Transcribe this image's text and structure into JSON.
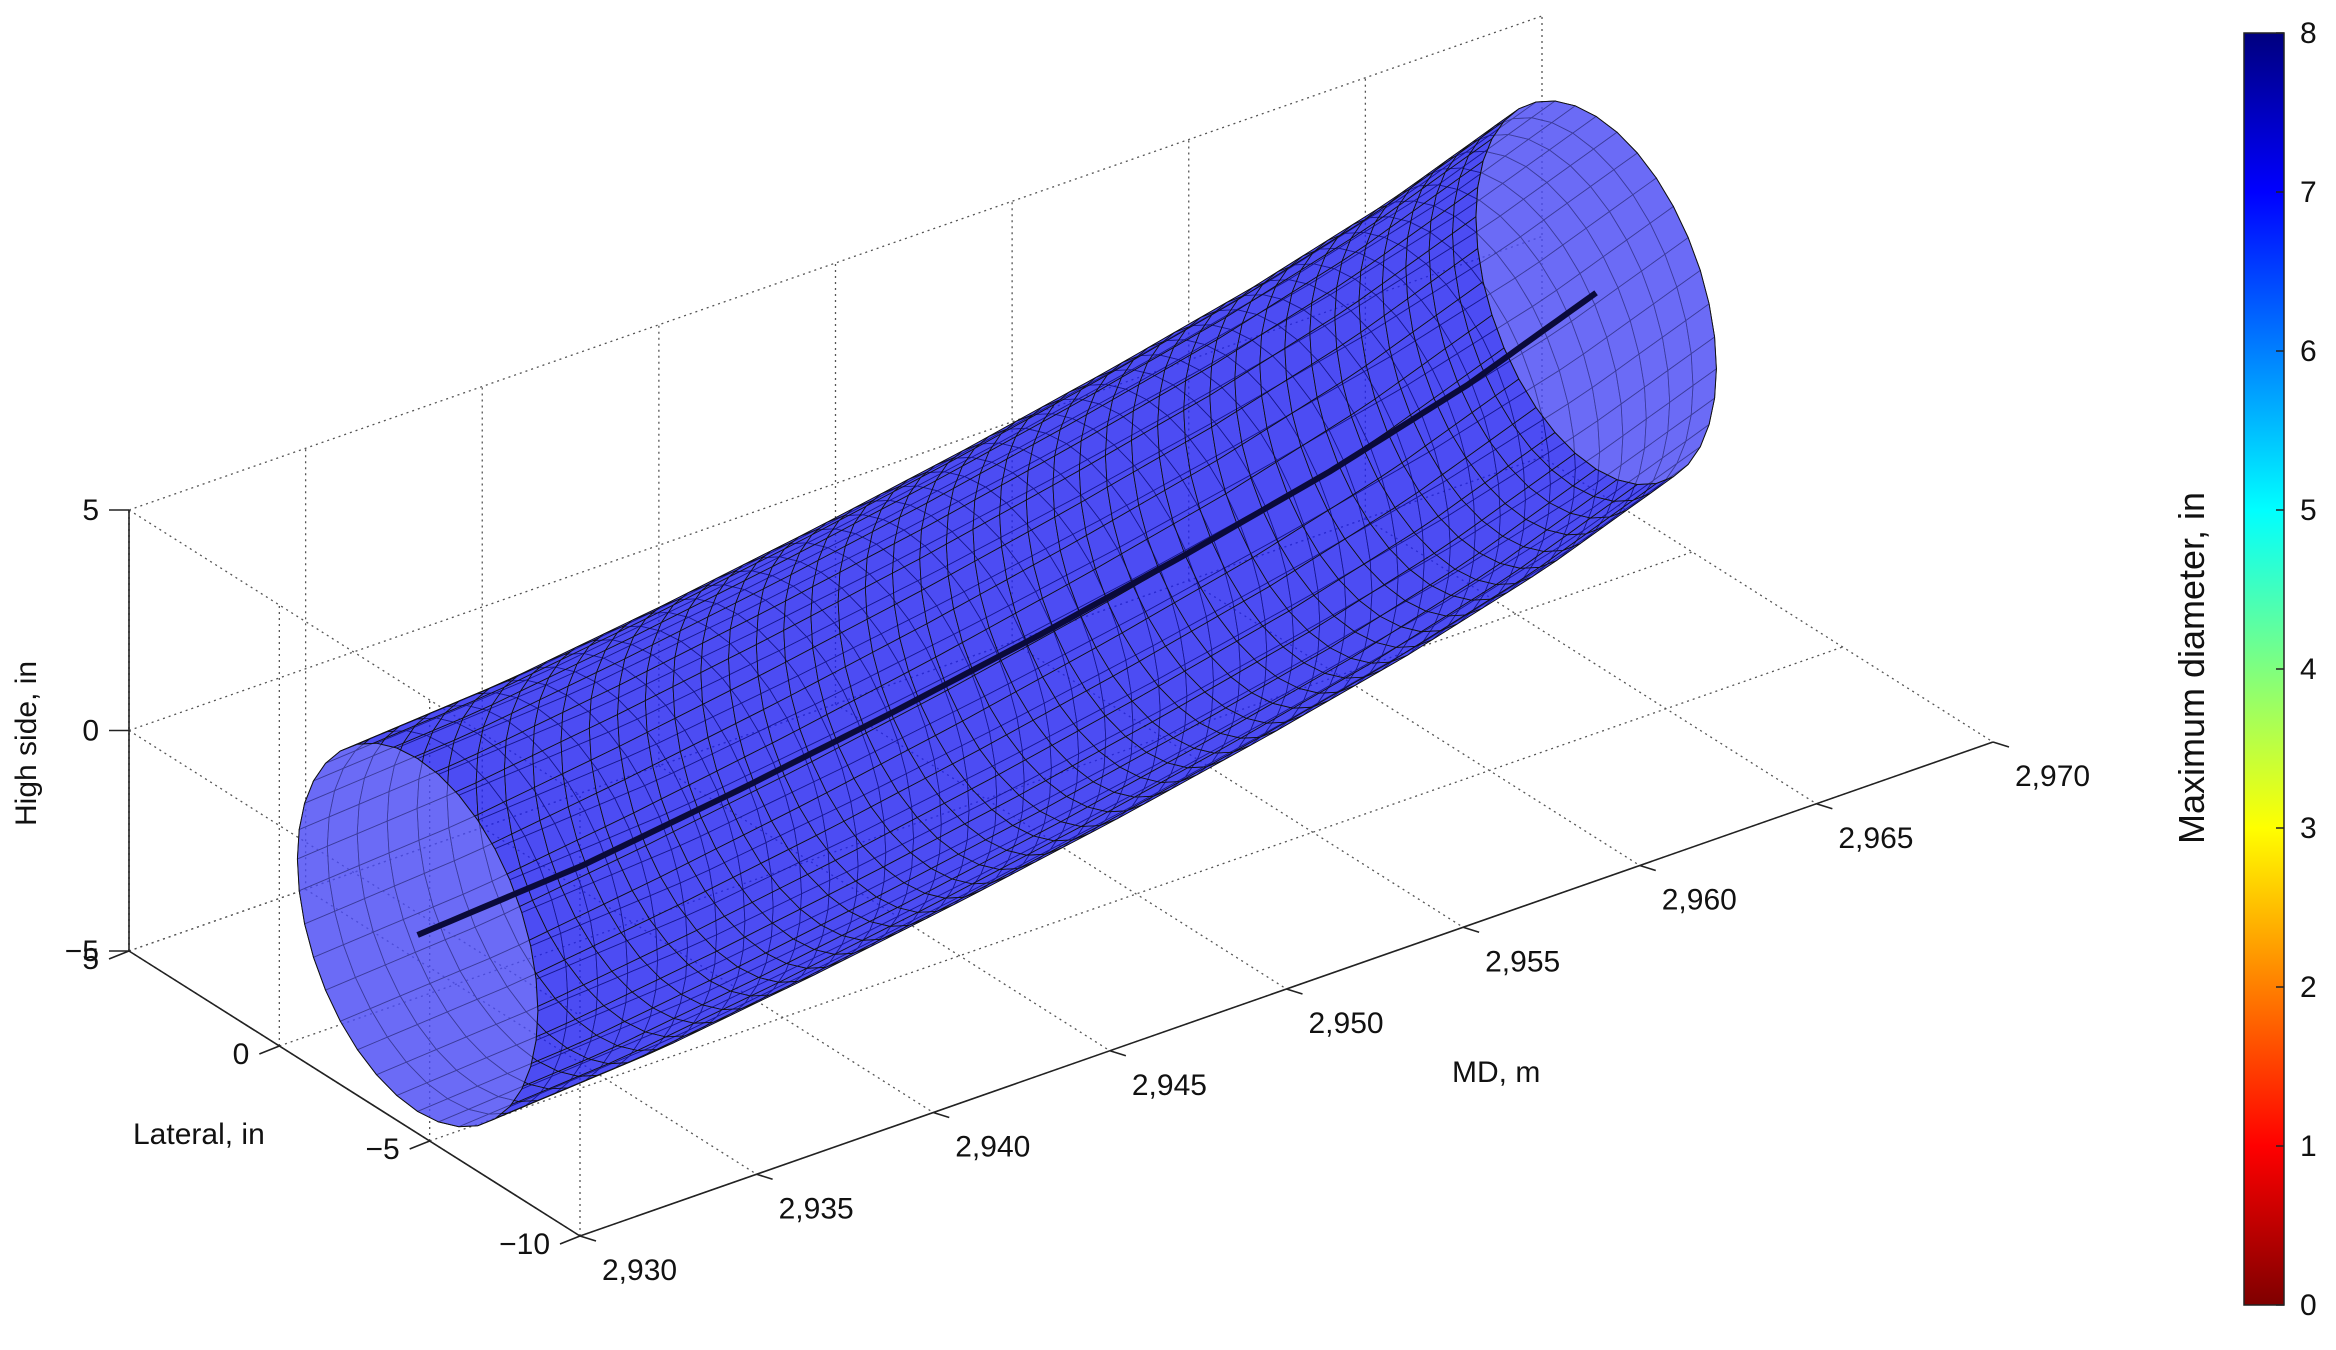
{
  "chart_data": {
    "type": "surface-3d",
    "description_free": true,
    "x_axis": {
      "label": "MD, m",
      "range": [
        2930,
        2970
      ],
      "ticks": [
        2930,
        2935,
        2940,
        2945,
        2950,
        2955,
        2960,
        2965,
        2970
      ],
      "tick_labels": [
        "2,930",
        "2,935",
        "2,940",
        "2,945",
        "2,950",
        "2,955",
        "2,960",
        "2,965",
        "2,970"
      ]
    },
    "y_axis": {
      "label": "Lateral, in",
      "range": [
        -10,
        5
      ],
      "ticks": [
        5,
        0,
        -5,
        -10
      ],
      "tick_labels": [
        "5",
        "0",
        "−5",
        "−10"
      ]
    },
    "z_axis": {
      "label": "High side, in",
      "range": [
        -5,
        5
      ],
      "ticks": [
        5,
        0,
        -5
      ],
      "tick_labels": [
        "5",
        "0",
        "−5"
      ]
    },
    "colorbar": {
      "label": "Maximum diameter, in",
      "range": [
        0,
        8
      ],
      "ticks": [
        8,
        7,
        6,
        5,
        4,
        3,
        2,
        1,
        0
      ],
      "tick_labels": [
        "8",
        "7",
        "6",
        "5",
        "4",
        "3",
        "2",
        "1",
        "0"
      ],
      "colormap": "jet"
    },
    "surface": {
      "max_diameter_in": 8,
      "color": "#1f1ff0",
      "color_light": "#5a5af5",
      "centerline_md": [
        2930,
        2935,
        2940,
        2945,
        2950,
        2955,
        2960,
        2965,
        2970
      ],
      "centerline_lateral": [
        -4.6,
        -4.2,
        -3.5,
        -2.7,
        -1.8,
        -0.8,
        0.3,
        1.6,
        3.2
      ]
    },
    "grid": true
  }
}
